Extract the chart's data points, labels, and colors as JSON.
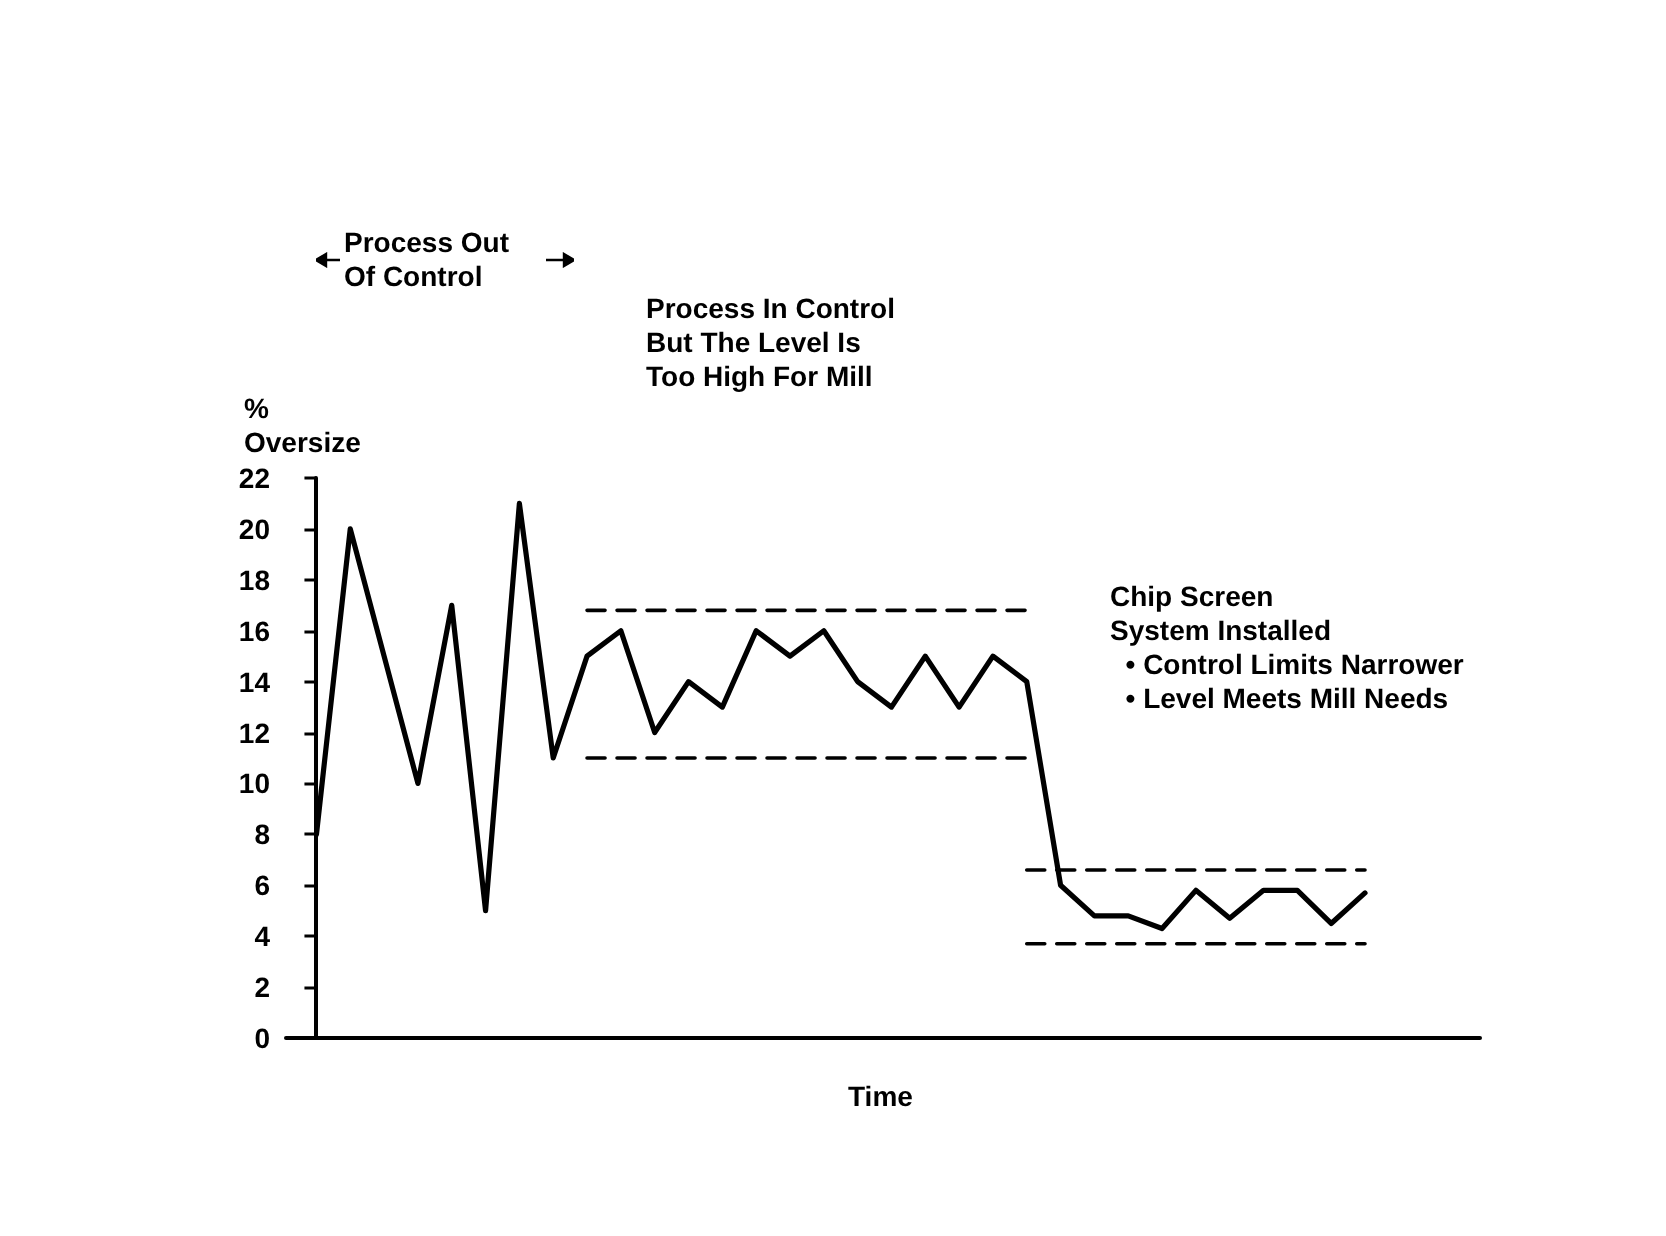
{
  "chart_data": {
    "type": "line",
    "xlabel": "Time",
    "ylabel": "%\nOversize",
    "categories": [
      null,
      null,
      null,
      null,
      null,
      null,
      null,
      null,
      null,
      null,
      null,
      null,
      null,
      null,
      null,
      null,
      null,
      null,
      null,
      null,
      null,
      null,
      null,
      null,
      null,
      null,
      null,
      null,
      null,
      null,
      null,
      null
    ],
    "series": [
      {
        "color": "#000000",
        "values": [
          8,
          20,
          15,
          10,
          17,
          5,
          21,
          11,
          15,
          16,
          12,
          14,
          13,
          16,
          15,
          16,
          14,
          13,
          15,
          13,
          15,
          14,
          6,
          4.8,
          4.8,
          4.3,
          5.8,
          4.7,
          5.8,
          5.8,
          4.5,
          5.7
        ]
      },
      {
        "color": "#000000",
        "line_style": "dashed",
        "values": [
          null,
          null,
          null,
          null,
          null,
          null,
          null,
          null,
          16.8,
          16.8,
          16.8,
          16.8,
          16.8,
          16.8,
          16.8,
          16.8,
          16.8,
          16.8,
          16.8,
          16.8,
          16.8,
          16.8,
          null,
          null,
          null,
          null,
          null,
          null,
          null,
          null,
          null,
          null
        ]
      },
      {
        "color": "#000000",
        "line_style": "dashed",
        "values": [
          null,
          null,
          null,
          null,
          null,
          null,
          null,
          null,
          11,
          11,
          11,
          11,
          11,
          11,
          11,
          11,
          11,
          11,
          11,
          11,
          11,
          11,
          null,
          null,
          null,
          null,
          null,
          null,
          null,
          null,
          null,
          null
        ]
      },
      {
        "color": "#000000",
        "line_style": "dashed",
        "values": [
          null,
          null,
          null,
          null,
          null,
          null,
          null,
          null,
          null,
          null,
          null,
          null,
          null,
          null,
          null,
          null,
          null,
          null,
          null,
          null,
          null,
          6.6,
          6.6,
          6.6,
          6.6,
          6.6,
          6.6,
          6.6,
          6.6,
          6.6,
          6.6,
          6.6
        ]
      },
      {
        "color": "#000000",
        "line_style": "dashed",
        "values": [
          null,
          null,
          null,
          null,
          null,
          null,
          null,
          null,
          null,
          null,
          null,
          null,
          null,
          null,
          null,
          null,
          null,
          null,
          null,
          null,
          null,
          3.7,
          3.7,
          3.7,
          3.7,
          3.7,
          3.7,
          3.7,
          3.7,
          3.7,
          3.7,
          3.7
        ]
      }
    ],
    "ylim": [
      0,
      22
    ],
    "yticks": [
      0,
      2,
      4,
      6,
      8,
      10,
      12,
      14,
      16,
      18,
      20,
      22
    ],
    "annotations": [
      "Process Out\nOf Control",
      "Process In Control\nBut The Level Is\nToo High For Mill",
      "Chip Screen\nSystem Installed\n  • Control Limits Narrower\n  • Level Meets Mill Needs"
    ],
    "grid": false,
    "marker": "none",
    "line_style": "solid"
  }
}
